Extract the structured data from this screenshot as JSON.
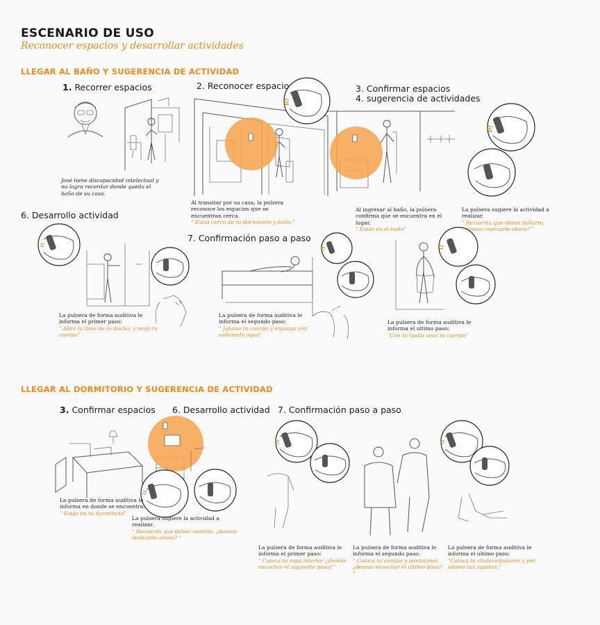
{
  "header": {
    "title": "ESCENARIO DE USO",
    "subtitle": "Reconocer espacios y desarrollar actividades"
  },
  "section1": {
    "heading": "LLEGAR AL BAÑO Y SUGERENCIA DE ACTIVIDAD",
    "step1": {
      "num": "1.",
      "label": "Recorrer espacios",
      "caption": "José tiene discapacidad intelectual y no logra recordar donde queda el baño de su casa."
    },
    "step2": {
      "label": "2. Reconocer espacios",
      "caption": "Al transitar por su casa, la pulsera reconoce los espacios que se encuentran cerca.",
      "quote": "\" Estás cerca de tu dormitorio y baño.\""
    },
    "step3": {
      "label": "3. Confirmar espacios",
      "label2": "4. sugerencia de actividades",
      "caption": "Al ingresar al baño, la pulsera confirma que se encuentra en el lugar.",
      "quote": "\" Estás en el baño\""
    },
    "step4": {
      "caption": "La pulsera sugiere la actividad a realizar.",
      "quote": "\" Recuerda que debes bañarte, ¿deseas realizarlo ahora? \""
    },
    "step6": {
      "label": "6. Desarrollo actividad",
      "caption": "La pulsera de forma auditiva le informa el primer paso:",
      "quote": "\" Abre la llave de la ducha, y moja tu cuerpo\""
    },
    "step7": {
      "label": "7. Confirmación paso a paso",
      "caption": "La pulsera de forma auditiva le informa el segundo paso:",
      "quote": "\" Jabona tu cuerpo y enjuaga con suficiente agua\""
    },
    "step7b": {
      "caption": "La pulsera de forma auditiva le informa el ultimo paso:",
      "quote": "\"Con tu toalla seca tu cuerpo\""
    }
  },
  "section2": {
    "heading": "LLEGAR AL DORMITORIO Y SUGERENCIA DE ACTIVIDAD",
    "step3": {
      "num": "3.",
      "label": "Confirmar espacios",
      "caption": "La pulsera de forma auditiva le informa en donde se encuentra.",
      "quote": "\" Estás en tu dormitorio\""
    },
    "step6": {
      "label": "6. Desarrollo actividad",
      "caption": "La pulsera sugiere la actividad a realizar.",
      "quote": "\" Recuerda que debes vestirte, ¿deseas realizarlo ahora? \""
    },
    "step7": {
      "label": "7. Confirmación paso a paso"
    },
    "cap1": {
      "caption": "La pulsera de forma auditiva le informa el primer paso:",
      "quote": "\"  Coloca tu ropa interior ¿deseas escuchar el siguiente paso? \""
    },
    "cap2": {
      "caption": "La pulsera de forma auditiva le informa el segundo paso:",
      "quote": "\" Coloca tu camisa y pantalones ¿deseas escuchar el ultimo paso? \""
    },
    "cap3": {
      "caption": "La pulsera de forma auditiva le informa el ultimo paso:",
      "quote": "\"Coloca tu chaleco/polerón y por ultimo  tus zapatos.\""
    }
  },
  "colors": {
    "accent": "#ef8a1e",
    "highlight": "#f6a24a",
    "text": "#222222"
  },
  "icons": [
    "wristband-icon",
    "speaker-icon"
  ]
}
